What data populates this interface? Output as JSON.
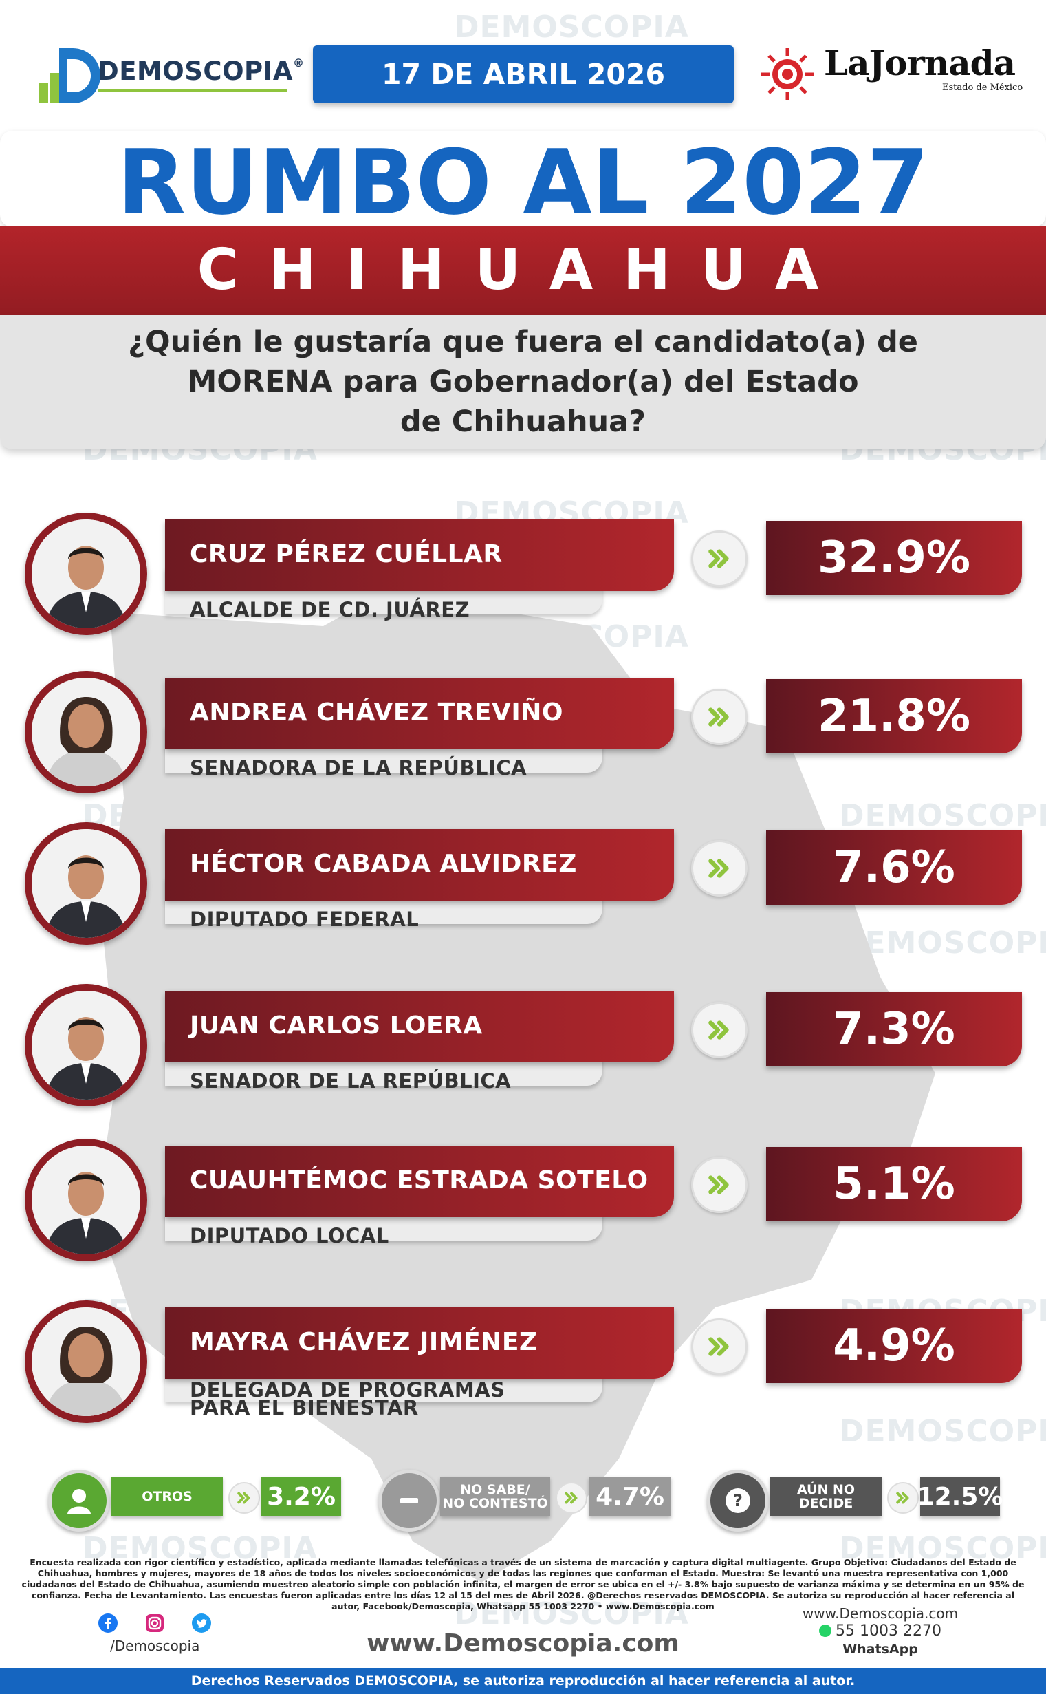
{
  "header": {
    "brand": "DEMOSCOPIA",
    "brand_mark": "®",
    "date": "17 DE ABRIL 2026",
    "partner": "LaJornada",
    "partner_sub": "Estado de México"
  },
  "watermark": "DEMOSCOPIA",
  "title": {
    "main": "RUMBO AL 2027",
    "state": "CHIHUAHUA",
    "question": [
      "¿Quién le gustaría que fuera el candidato(a) de",
      "MORENA para Gobernador(a) del Estado",
      "de Chihuahua?"
    ]
  },
  "candidates": [
    {
      "name": "CRUZ PÉREZ CUÉLLAR",
      "role": [
        "ALCALDE DE CD. JUÁREZ"
      ],
      "pct": "32.9%",
      "value": 32.9
    },
    {
      "name": "ANDREA CHÁVEZ TREVIÑO",
      "role": [
        "SENADORA DE LA REPÚBLICA"
      ],
      "pct": "21.8%",
      "value": 21.8
    },
    {
      "name": "HÉCTOR CABADA ALVIDREZ",
      "role": [
        "DIPUTADO FEDERAL"
      ],
      "pct": "7.6%",
      "value": 7.6
    },
    {
      "name": "JUAN CARLOS LOERA",
      "role": [
        "SENADOR DE LA REPÚBLICA"
      ],
      "pct": "7.3%",
      "value": 7.3
    },
    {
      "name": "CUAUHTÉMOC ESTRADA SOTELO",
      "role": [
        "DIPUTADO LOCAL"
      ],
      "pct": "5.1%",
      "value": 5.1
    },
    {
      "name": "MAYRA CHÁVEZ JIMÉNEZ",
      "role": [
        "DELEGADA DE PROGRAMAS",
        "PARA EL BIENESTAR"
      ],
      "pct": "4.9%",
      "value": 4.9
    }
  ],
  "summary": [
    {
      "label": [
        "OTROS"
      ],
      "pct": "3.2%",
      "color": "#5aa832",
      "icon": "person-icon"
    },
    {
      "label": [
        "NO SABE/",
        "NO CONTESTÓ"
      ],
      "pct": "4.7%",
      "color": "#9a9a9a",
      "icon": "minus-icon"
    },
    {
      "label": [
        "AÚN NO DECIDE"
      ],
      "pct": "12.5%",
      "color": "#555555",
      "icon": "question-icon"
    }
  ],
  "footnote": "Encuesta realizada con rigor científico y estadístico, aplicada mediante llamadas telefónicas a través de un sistema de marcación y captura digital multiagente. Grupo Objetivo: Ciudadanos del Estado de Chihuahua, hombres y mujeres, mayores de 18 años de todos los niveles socioeconómicos y de todas las regiones que conforman el Estado. Muestra: Se levantó una muestra representativa con 1,000 ciudadanos del Estado de Chihuahua, asumiendo muestreo aleatorio simple con población infinita, el margen de error se ubica en el +/- 3.8% bajo supuesto de varianza máxima y se determina en un 95% de confianza. Fecha de Levantamiento. Las encuestas fueron aplicadas entre los días 12 al 15 del mes de Abril 2026. @Derechos reservados DEMOSCOPIA. Se autoriza su reproducción al hacer referencia al autor, Facebook/Demoscopia, Whatsapp 55 1003 2270 • www.Demoscopia.com",
  "social": {
    "handle": "/Demoscopia"
  },
  "website": "www.Demoscopia.com",
  "contact": {
    "site": "www.Demoscopia.com",
    "phone": "55 1003 2270",
    "phone_label": "WhatsApp"
  },
  "footer": "Derechos Reservados DEMOSCOPIA, se autoriza reproducción al hacer referencia al autor.",
  "colors": {
    "blue": "#1565c0",
    "red": "#b1262c",
    "green": "#8fc43e"
  }
}
